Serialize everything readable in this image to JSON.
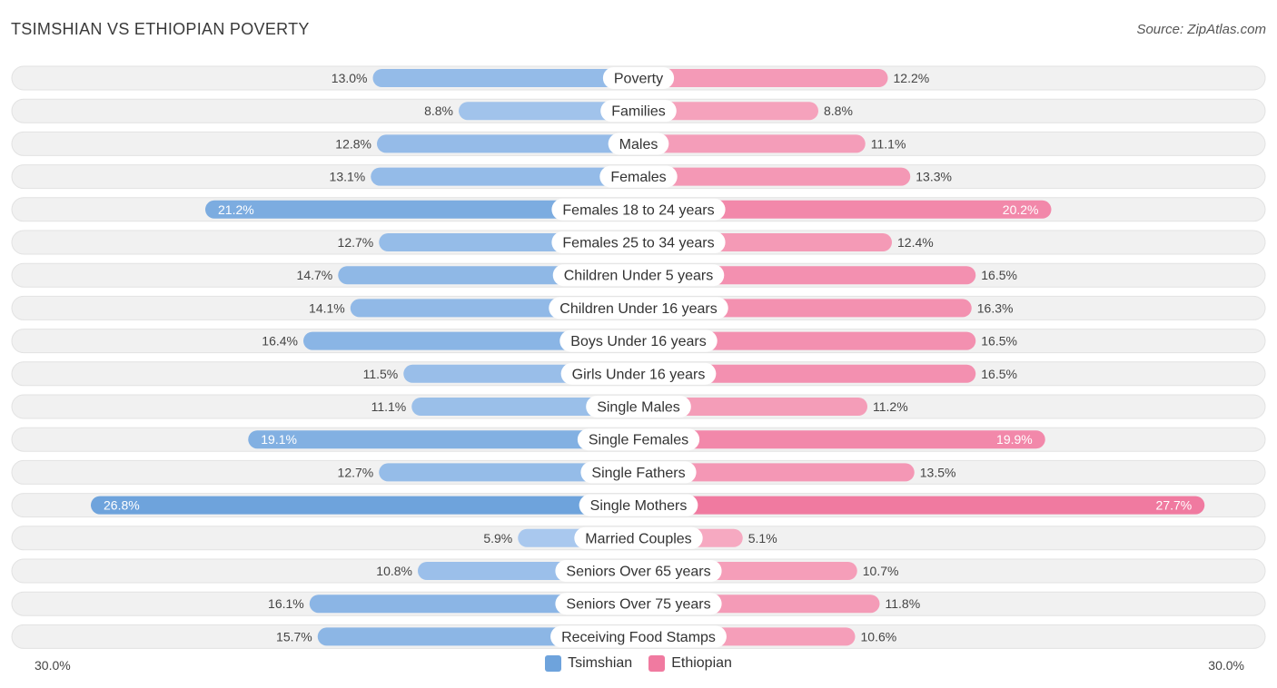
{
  "header": {
    "title": "TSIMSHIAN VS ETHIOPIAN POVERTY",
    "source": "Source: ZipAtlas.com"
  },
  "axis": {
    "left_label": "30.0%",
    "right_label": "30.0%"
  },
  "legend": [
    {
      "name": "Tsimshian",
      "color": "#6ea3dc"
    },
    {
      "name": "Ethiopian",
      "color": "#f07aa0"
    }
  ],
  "chart_data": {
    "type": "bar",
    "orientation": "horizontal-diverging",
    "title": "TSIMSHIAN VS ETHIOPIAN POVERTY",
    "xlim": [
      -30,
      30
    ],
    "unit": "%",
    "categories": [
      "Poverty",
      "Families",
      "Males",
      "Females",
      "Females 18 to 24 years",
      "Females 25 to 34 years",
      "Children Under 5 years",
      "Children Under 16 years",
      "Boys Under 16 years",
      "Girls Under 16 years",
      "Single Males",
      "Single Females",
      "Single Fathers",
      "Single Mothers",
      "Married Couples",
      "Seniors Over 65 years",
      "Seniors Over 75 years",
      "Receiving Food Stamps"
    ],
    "series": [
      {
        "name": "Tsimshian",
        "values": [
          13.0,
          8.8,
          12.8,
          13.1,
          21.2,
          12.7,
          14.7,
          14.1,
          16.4,
          11.5,
          11.1,
          19.1,
          12.7,
          26.8,
          5.9,
          10.8,
          16.1,
          15.7
        ],
        "labels": [
          "13.0%",
          "8.8%",
          "12.8%",
          "13.1%",
          "21.2%",
          "12.7%",
          "14.7%",
          "14.1%",
          "16.4%",
          "11.5%",
          "11.1%",
          "19.1%",
          "12.7%",
          "26.8%",
          "5.9%",
          "10.8%",
          "16.1%",
          "15.7%"
        ]
      },
      {
        "name": "Ethiopian",
        "values": [
          12.2,
          8.8,
          11.1,
          13.3,
          20.2,
          12.4,
          16.5,
          16.3,
          16.5,
          16.5,
          11.2,
          19.9,
          13.5,
          27.7,
          5.1,
          10.7,
          11.8,
          10.6
        ],
        "labels": [
          "12.2%",
          "8.8%",
          "11.1%",
          "13.3%",
          "20.2%",
          "12.4%",
          "16.5%",
          "16.3%",
          "16.5%",
          "16.5%",
          "11.2%",
          "19.9%",
          "13.5%",
          "27.7%",
          "5.1%",
          "10.7%",
          "11.8%",
          "10.6%"
        ]
      }
    ],
    "colors": {
      "left_light": "#a9c8ee",
      "left_dark": "#6ea3dc",
      "right_light": "#f6a9c1",
      "right_dark": "#f07aa0",
      "track": "#f1f1f1"
    }
  }
}
